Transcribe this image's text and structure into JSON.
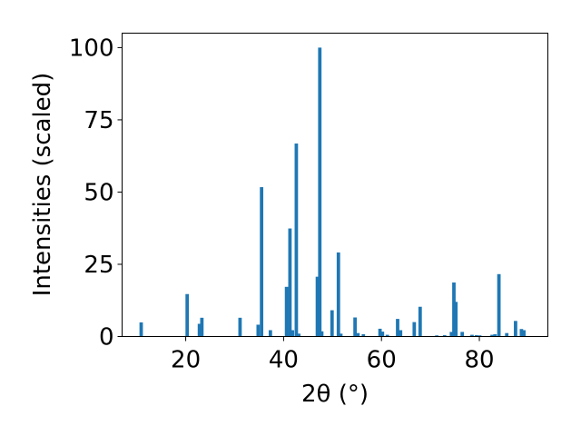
{
  "chart_data": {
    "type": "bar",
    "title": "",
    "xlabel": "2θ (°)",
    "ylabel": "Intensities (scaled)",
    "xlim": [
      7,
      94
    ],
    "ylim": [
      0,
      105
    ],
    "xticks": [
      20,
      40,
      60,
      80
    ],
    "yticks": [
      0,
      25,
      50,
      75,
      100
    ],
    "grid": false,
    "bar_color": "#1f77b4",
    "bar_width": 0.7,
    "x": [
      10.9,
      20.3,
      22.8,
      23.3,
      31.1,
      34.8,
      35.5,
      37.3,
      40.6,
      41.3,
      41.8,
      42.6,
      43.1,
      46.9,
      47.4,
      47.8,
      49.9,
      51.2,
      51.7,
      54.6,
      55.2,
      56.3,
      59.7,
      60.2,
      61.2,
      63.3,
      63.9,
      66.7,
      67.9,
      71.3,
      72.9,
      74.3,
      74.8,
      75.2,
      76.5,
      78.5,
      79.4,
      80.1,
      82.6,
      83.2,
      84.0,
      85.6,
      87.4,
      88.6,
      89.1
    ],
    "values": [
      4.9,
      14.7,
      4.4,
      6.5,
      6.5,
      4.1,
      51.7,
      2.2,
      17.2,
      37.4,
      2.2,
      66.8,
      1.0,
      20.7,
      100.0,
      1.8,
      9.1,
      29.1,
      1.0,
      6.6,
      1.2,
      0.8,
      2.7,
      1.7,
      0.6,
      6.1,
      2.2,
      5.0,
      10.3,
      0.4,
      0.5,
      1.6,
      18.7,
      12.0,
      1.6,
      0.6,
      0.5,
      0.4,
      0.6,
      0.8,
      21.6,
      1.2,
      5.4,
      2.6,
      2.2
    ]
  }
}
